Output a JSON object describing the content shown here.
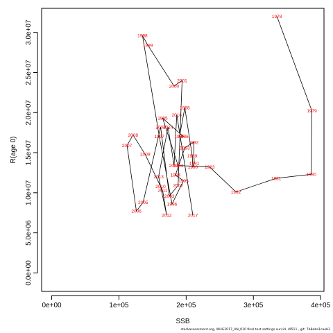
{
  "footer": "stockassessment.org, WHG2017_AN_010 final test settings survid, r9511 , git: 7b8eba1caeb3",
  "chart_data": {
    "type": "line",
    "title": "",
    "xlabel": "SSB",
    "ylabel": "R(age 0)",
    "xlim": [
      -15000,
      405000
    ],
    "ylim": [
      -2300000,
      33000000
    ],
    "x_ticks": [
      0,
      100000,
      200000,
      300000,
      400000
    ],
    "x_tick_labels": [
      "0e+00",
      "1e+05",
      "2e+05",
      "3e+05",
      "4e+05"
    ],
    "y_ticks": [
      0,
      5000000,
      10000000,
      15000000,
      20000000,
      25000000,
      30000000
    ],
    "y_tick_labels": [
      "0.0e+00",
      "5.0e+06",
      "1.0e+07",
      "1.5e+07",
      "2.0e+07",
      "2.5e+07",
      "3.0e+07"
    ],
    "grid": false,
    "line_color": "#000000",
    "label_color": "#ff0000",
    "points": [
      {
        "year": "1978",
        "ssb": 335000,
        "rec": 32000000
      },
      {
        "year": "1979",
        "ssb": 387000,
        "rec": 20200000
      },
      {
        "year": "1980",
        "ssb": 386000,
        "rec": 12300000
      },
      {
        "year": "1981",
        "ssb": 334000,
        "rec": 11800000
      },
      {
        "year": "1982",
        "ssb": 274000,
        "rec": 10100000
      },
      {
        "year": "1983",
        "ssb": 235000,
        "rec": 13200000
      },
      {
        "year": "1984",
        "ssb": 188000,
        "rec": 13400000
      },
      {
        "year": "1985",
        "ssb": 165000,
        "rec": 19300000
      },
      {
        "year": "1986",
        "ssb": 196000,
        "rec": 17000000
      },
      {
        "year": "1987",
        "ssb": 190000,
        "rec": 17000000
      },
      {
        "year": "1988",
        "ssb": 198000,
        "rec": 20600000
      },
      {
        "year": "1989",
        "ssb": 209000,
        "rec": 14600000
      },
      {
        "year": "1990",
        "ssb": 210000,
        "rec": 13200000
      },
      {
        "year": "1991",
        "ssb": 212000,
        "rec": 13700000
      },
      {
        "year": "1992",
        "ssb": 211000,
        "rec": 16300000
      },
      {
        "year": "1993",
        "ssb": 198000,
        "rec": 15600000
      },
      {
        "year": "1994",
        "ssb": 184000,
        "rec": 12200000
      },
      {
        "year": "1995",
        "ssb": 196000,
        "rec": 11500000
      },
      {
        "year": "1996",
        "ssb": 179000,
        "rec": 8600000
      },
      {
        "year": "1997",
        "ssb": 160000,
        "rec": 17000000
      },
      {
        "year": "1998",
        "ssb": 135000,
        "rec": 29600000
      },
      {
        "year": "1999",
        "ssb": 143000,
        "rec": 28400000
      },
      {
        "year": "2000",
        "ssb": 182000,
        "rec": 23300000
      },
      {
        "year": "2001",
        "ssb": 194000,
        "rec": 24000000
      },
      {
        "year": "2002",
        "ssb": 188000,
        "rec": 10900000
      },
      {
        "year": "2003",
        "ssb": 175000,
        "rec": 9600000
      },
      {
        "year": "2004",
        "ssb": 162000,
        "rec": 18200000
      },
      {
        "year": "2005",
        "ssb": 136000,
        "rec": 8800000
      },
      {
        "year": "2006",
        "ssb": 126000,
        "rec": 7700000
      },
      {
        "year": "2007",
        "ssb": 112000,
        "rec": 15900000
      },
      {
        "year": "2008",
        "ssb": 121000,
        "rec": 17200000
      },
      {
        "year": "2009",
        "ssb": 139000,
        "rec": 14800000
      },
      {
        "year": "2010",
        "ssb": 162000,
        "rec": 10800000
      },
      {
        "year": "2011",
        "ssb": 165000,
        "rec": 10300000
      },
      {
        "year": "2012",
        "ssb": 171000,
        "rec": 7200000
      },
      {
        "year": "2013",
        "ssb": 159000,
        "rec": 12000000
      },
      {
        "year": "2014",
        "ssb": 173000,
        "rec": 18200000
      },
      {
        "year": "2015",
        "ssb": 182000,
        "rec": 13400000
      },
      {
        "year": "2016",
        "ssb": 186000,
        "rec": 19700000
      },
      {
        "year": "2017",
        "ssb": 210000,
        "rec": 7200000
      }
    ]
  }
}
